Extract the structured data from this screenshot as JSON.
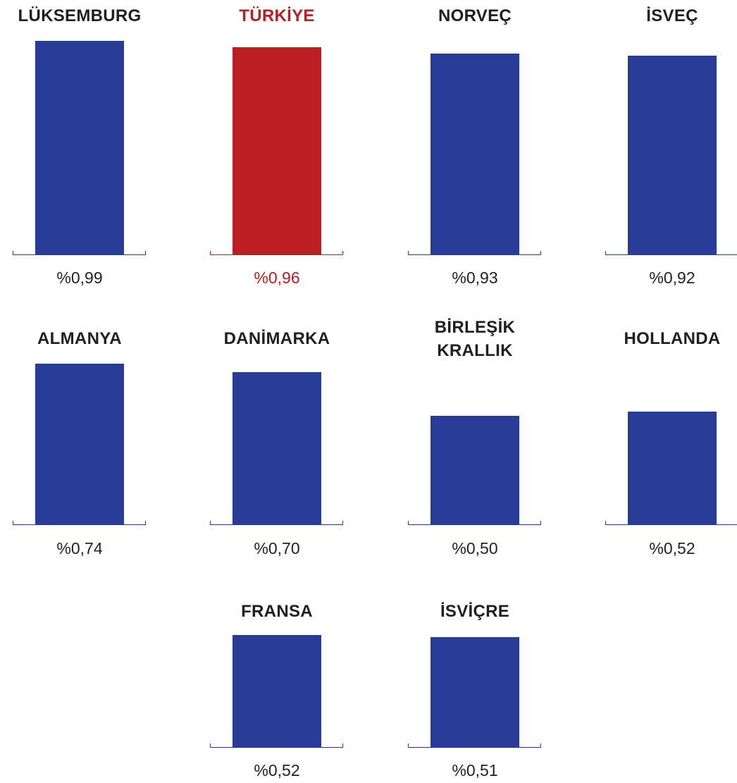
{
  "chart_data": {
    "type": "bar",
    "colors": {
      "default": "#263C96",
      "highlight": "#BC1D23",
      "label": "#1F1F1F"
    },
    "panels": [
      {
        "name": "LÜKSEMBURG",
        "value": 0.99,
        "value_label": "%0,99",
        "highlight": false
      },
      {
        "name": "TÜRKİYE",
        "value": 0.96,
        "value_label": "%0,96",
        "highlight": true
      },
      {
        "name": "NORVEÇ",
        "value": 0.93,
        "value_label": "%0,93",
        "highlight": false
      },
      {
        "name": "İSVEÇ",
        "value": 0.92,
        "value_label": "%0,92",
        "highlight": false
      },
      {
        "name": "ALMANYA",
        "value": 0.74,
        "value_label": "%0,74",
        "highlight": false
      },
      {
        "name": "DANİMARKA",
        "value": 0.7,
        "value_label": "%0,70",
        "highlight": false
      },
      {
        "name": "BİRLEŞİK\nKRALLIK",
        "value": 0.5,
        "value_label": "%0,50",
        "highlight": false
      },
      {
        "name": "HOLLANDA",
        "value": 0.52,
        "value_label": "%0,52",
        "highlight": false
      },
      {
        "name": "FRANSA",
        "value": 0.52,
        "value_label": "%0,52",
        "highlight": false
      },
      {
        "name": "İSVİÇRE",
        "value": 0.51,
        "value_label": "%0,51",
        "highlight": false
      }
    ]
  }
}
